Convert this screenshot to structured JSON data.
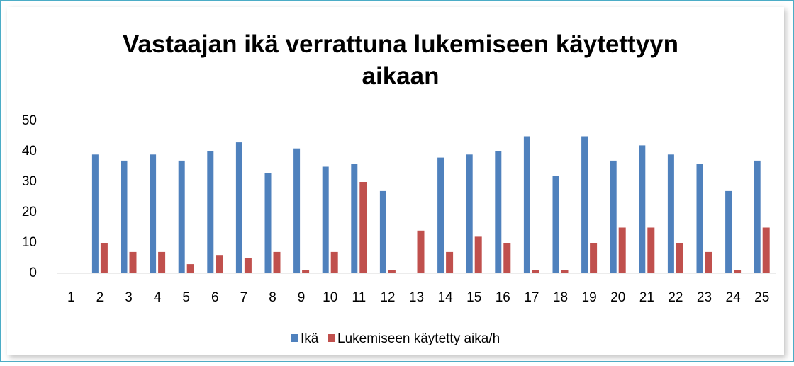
{
  "chart_data": {
    "type": "bar",
    "title": "Vastaajan ikä verrattuna lukemiseen käytettyyn aikaan",
    "categories": [
      "1",
      "2",
      "3",
      "4",
      "5",
      "6",
      "7",
      "8",
      "9",
      "10",
      "11",
      "12",
      "13",
      "14",
      "15",
      "16",
      "17",
      "18",
      "19",
      "20",
      "21",
      "22",
      "23",
      "24",
      "25"
    ],
    "series": [
      {
        "name": "Ikä",
        "color": "#4f81bd",
        "values": [
          null,
          39,
          37,
          39,
          37,
          40,
          43,
          33,
          41,
          35,
          36,
          27,
          null,
          38,
          39,
          40,
          45,
          32,
          45,
          37,
          42,
          39,
          36,
          27,
          37
        ]
      },
      {
        "name": "Lukemiseen käytetty aika/h",
        "color": "#c0504d",
        "values": [
          null,
          10,
          7,
          7,
          3,
          6,
          5,
          7,
          1,
          7,
          30,
          1,
          14,
          7,
          12,
          10,
          1,
          1,
          10,
          15,
          15,
          10,
          7,
          1,
          15
        ]
      }
    ],
    "ylim": [
      0,
      50
    ],
    "yticks": [
      0,
      10,
      20,
      30,
      40,
      50
    ],
    "grid": false,
    "legend": "bottom"
  }
}
